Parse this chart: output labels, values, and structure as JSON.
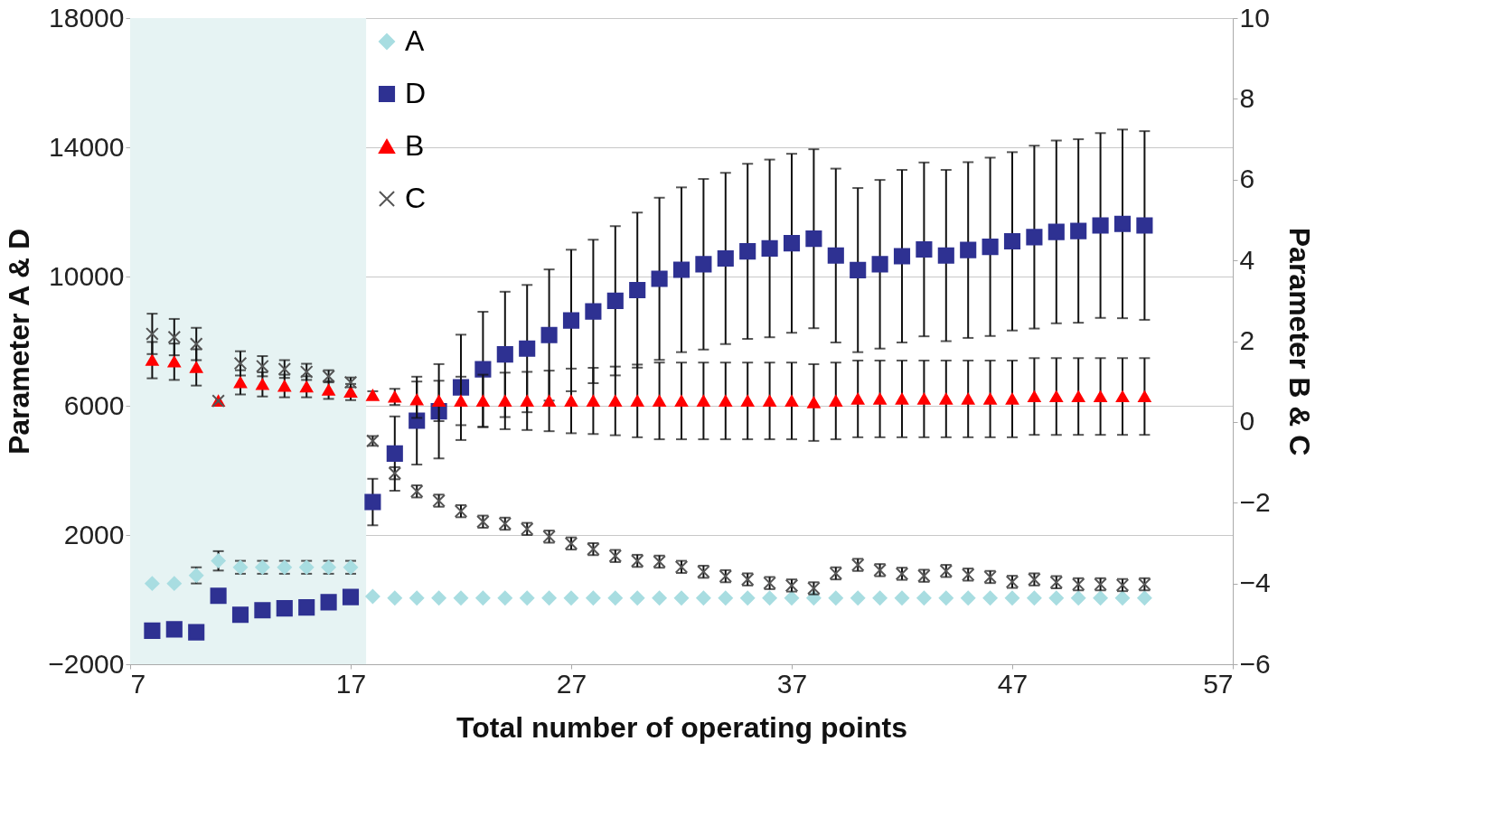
{
  "chart_data": {
    "type": "scatter",
    "xlabel": "Total number of operating points",
    "ylabel": "Parameter A & D",
    "y2label": "Parameter B & C",
    "x": [
      8,
      9,
      10,
      11,
      12,
      13,
      14,
      15,
      16,
      17,
      18,
      19,
      20,
      21,
      22,
      23,
      24,
      25,
      26,
      27,
      28,
      29,
      30,
      31,
      32,
      33,
      34,
      35,
      36,
      37,
      38,
      39,
      40,
      41,
      42,
      43,
      44,
      45,
      46,
      47,
      48,
      49,
      50,
      51,
      52,
      53
    ],
    "xlim": [
      7,
      57
    ],
    "xticks": [
      7,
      17,
      27,
      37,
      47,
      57
    ],
    "ylim": [
      -2000,
      18000
    ],
    "yticks": [
      -2000,
      2000,
      6000,
      10000,
      14000,
      18000
    ],
    "y2lim": [
      -6,
      10
    ],
    "y2ticks": [
      -6,
      -4,
      -2,
      0,
      2,
      4,
      6,
      8,
      10
    ],
    "grid": "y",
    "legend": "top left",
    "bands": [
      {
        "axis": "x",
        "from": 7,
        "to": 17.7,
        "color": "#e6f3f3"
      }
    ],
    "series": [
      {
        "name": "A",
        "color": "#a8dde1",
        "marker": "diamond",
        "values": [
          500,
          500,
          750,
          1200,
          1000,
          1000,
          1000,
          1000,
          1000,
          1000,
          100,
          50,
          50,
          50,
          50,
          50,
          50,
          50,
          50,
          50,
          50,
          50,
          50,
          50,
          50,
          50,
          50,
          50,
          50,
          50,
          50,
          50,
          50,
          50,
          50,
          50,
          50,
          50,
          50,
          50,
          50,
          50,
          50,
          50,
          50,
          50
        ],
        "errors": [
          null,
          null,
          250,
          300,
          200,
          200,
          200,
          200,
          200,
          200,
          null,
          null,
          null,
          null,
          null,
          null,
          null,
          null,
          null,
          null,
          null,
          null,
          null,
          null,
          null,
          null,
          null,
          null,
          null,
          null,
          null,
          null,
          null,
          null,
          null,
          null,
          null,
          null,
          null,
          null,
          null,
          null,
          null,
          null,
          null,
          null
        ]
      },
      {
        "name": "D",
        "color": "#2e3192",
        "marker": "square",
        "values": [
          -960,
          -920,
          -1010,
          120,
          -470,
          -330,
          -270,
          -240,
          -80,
          80,
          3020,
          4520,
          5540,
          5830,
          6570,
          7130,
          7590,
          7770,
          8190,
          8640,
          8920,
          9250,
          9580,
          9930,
          10210,
          10380,
          10560,
          10780,
          10870,
          11030,
          11170,
          10650,
          10200,
          10380,
          10630,
          10840,
          10650,
          10820,
          10920,
          11090,
          11220,
          11380,
          11410,
          11580,
          11630,
          11580
        ],
        "errors": [
          null,
          null,
          null,
          null,
          null,
          null,
          null,
          null,
          null,
          null,
          720,
          1150,
          1360,
          1460,
          1630,
          1780,
          1940,
          1970,
          2030,
          2190,
          2220,
          2310,
          2400,
          2510,
          2550,
          2640,
          2650,
          2710,
          2750,
          2770,
          2770,
          2690,
          2540,
          2610,
          2670,
          2690,
          2650,
          2720,
          2760,
          2760,
          2830,
          2830,
          2840,
          2860,
          2920,
          2920
        ]
      },
      {
        "name": "B",
        "color": "#ff0000",
        "marker": "triangle",
        "axis": "y2",
        "values": [
          1.53,
          1.49,
          1.35,
          0.52,
          0.98,
          0.93,
          0.89,
          0.87,
          0.79,
          0.74,
          0.66,
          0.62,
          0.55,
          0.52,
          0.52,
          0.52,
          0.52,
          0.52,
          0.52,
          0.52,
          0.52,
          0.52,
          0.52,
          0.52,
          0.52,
          0.52,
          0.52,
          0.52,
          0.52,
          0.52,
          0.48,
          0.52,
          0.57,
          0.57,
          0.57,
          0.57,
          0.57,
          0.57,
          0.57,
          0.57,
          0.63,
          0.63,
          0.63,
          0.63,
          0.63,
          0.63
        ],
        "errors": [
          0.45,
          0.45,
          0.45,
          null,
          0.3,
          0.3,
          0.28,
          0.26,
          0.22,
          0.2,
          0.1,
          0.2,
          0.45,
          0.5,
          0.6,
          0.65,
          0.7,
          0.72,
          0.75,
          0.8,
          0.82,
          0.85,
          0.9,
          0.95,
          0.95,
          0.95,
          0.95,
          0.95,
          0.95,
          0.95,
          0.95,
          0.95,
          0.95,
          0.95,
          0.95,
          0.95,
          0.95,
          0.95,
          0.95,
          0.95,
          0.95,
          0.95,
          0.95,
          0.95,
          0.95,
          0.95
        ]
      },
      {
        "name": "C",
        "color": "#555555",
        "marker": "cross",
        "axis": "y2",
        "values": [
          2.18,
          2.1,
          1.93,
          0.52,
          1.45,
          1.38,
          1.31,
          1.24,
          1.13,
          0.98,
          -0.47,
          -1.27,
          -1.72,
          -1.95,
          -2.21,
          -2.47,
          -2.52,
          -2.65,
          -2.84,
          -3.01,
          -3.15,
          -3.32,
          -3.44,
          -3.46,
          -3.59,
          -3.71,
          -3.82,
          -3.9,
          -3.99,
          -4.05,
          -4.12,
          -3.75,
          -3.54,
          -3.67,
          -3.76,
          -3.81,
          -3.69,
          -3.78,
          -3.84,
          -3.96,
          -3.9,
          -3.97,
          -4.02,
          -4.02,
          -4.04,
          -4.02
        ],
        "errors": [
          0.5,
          0.45,
          0.4,
          null,
          0.3,
          0.25,
          0.22,
          0.2,
          0.15,
          0.12,
          0.12,
          0.15,
          0.15,
          0.15,
          0.15,
          0.15,
          0.15,
          0.15,
          0.15,
          0.15,
          0.15,
          0.15,
          0.15,
          0.15,
          0.15,
          0.15,
          0.15,
          0.15,
          0.15,
          0.15,
          0.15,
          0.15,
          0.15,
          0.15,
          0.15,
          0.15,
          0.15,
          0.15,
          0.15,
          0.15,
          0.15,
          0.15,
          0.15,
          0.15,
          0.15,
          0.15
        ]
      }
    ]
  }
}
